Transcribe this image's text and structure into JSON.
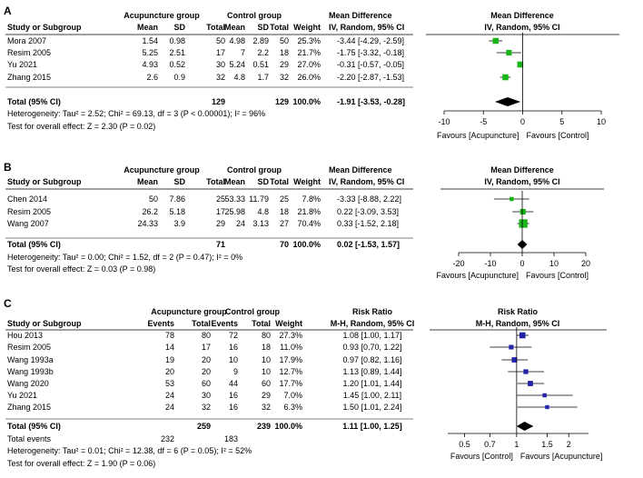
{
  "chart_data": [
    {
      "panel": "A",
      "type": "forest",
      "group1_header": "Acupuncture group",
      "group2_header": "Control group",
      "effect_header": "Mean Difference",
      "effect_sub": "IV, Random, 95% CI",
      "plot_header": "Mean Difference",
      "plot_sub": "IV, Random, 95% CI",
      "columns": [
        "Study or Subgroup",
        "Mean",
        "SD",
        "Total",
        "Mean",
        "SD",
        "Total",
        "Weight"
      ],
      "color": "#18b418",
      "studies": [
        {
          "name": "Mora 2007",
          "mean1": "1.54",
          "sd1": "0.98",
          "n1": "50",
          "mean2": "4.98",
          "sd2": "2.89",
          "n2": "50",
          "weight": "25.3%",
          "ci_text": "-3.44 [-4.29, -2.59]",
          "est": -3.44,
          "lo": -4.29,
          "hi": -2.59,
          "w": 25.3
        },
        {
          "name": "Resim 2005",
          "mean1": "5.25",
          "sd1": "2.51",
          "n1": "17",
          "mean2": "7",
          "sd2": "2.2",
          "n2": "18",
          "weight": "21.7%",
          "ci_text": "-1.75 [-3.32, -0.18]",
          "est": -1.75,
          "lo": -3.32,
          "hi": -0.18,
          "w": 21.7
        },
        {
          "name": "Yu 2021",
          "mean1": "4.93",
          "sd1": "0.52",
          "n1": "30",
          "mean2": "5.24",
          "sd2": "0.51",
          "n2": "29",
          "weight": "27.0%",
          "ci_text": "-0.31 [-0.57, -0.05]",
          "est": -0.31,
          "lo": -0.57,
          "hi": -0.05,
          "w": 27.0
        },
        {
          "name": "Zhang 2015",
          "mean1": "2.6",
          "sd1": "0.9",
          "n1": "32",
          "mean2": "4.8",
          "sd2": "1.7",
          "n2": "32",
          "weight": "26.0%",
          "ci_text": "-2.20 [-2.87, -1.53]",
          "est": -2.2,
          "lo": -2.87,
          "hi": -1.53,
          "w": 26.0
        }
      ],
      "total": {
        "label": "Total (95% CI)",
        "n1": "129",
        "n2": "129",
        "weight": "100.0%",
        "ci_text": "-1.91 [-3.53, -0.28]",
        "est": -1.91,
        "lo": -3.53,
        "hi": -0.28
      },
      "events": null,
      "heterogeneity": "Heterogeneity: Tau² = 2.52; Chi² = 69.13, df = 3 (P < 0.00001); I² = 96%",
      "overall_test": "Test for overall effect: Z = 2.30 (P = 0.02)",
      "axis": {
        "scale": "linear",
        "min": -10,
        "max": 10,
        "ticks": [
          -10,
          -5,
          0,
          5,
          10
        ],
        "tick_labels": [
          "-10",
          "-5",
          "0",
          "5",
          "10"
        ],
        "ref": 0
      },
      "favours_left": "Favours [Acupuncture]",
      "favours_right": "Favours [Control]"
    },
    {
      "panel": "B",
      "type": "forest",
      "group1_header": "Acupuncture group",
      "group2_header": "Control group",
      "effect_header": "Mean Difference",
      "effect_sub": "IV, Random, 95% CI",
      "plot_header": "Mean Difference",
      "plot_sub": "IV, Random, 95% CI",
      "columns": [
        "Study or Subgroup",
        "Mean",
        "SD",
        "Total",
        "Mean",
        "SD",
        "Total",
        "Weight"
      ],
      "color": "#18b418",
      "studies": [
        {
          "name": "Chen 2014",
          "mean1": "50",
          "sd1": "7.86",
          "n1": "25",
          "mean2": "53.33",
          "sd2": "11.79",
          "n2": "25",
          "weight": "7.8%",
          "ci_text": "-3.33 [-8.88, 2.22]",
          "est": -3.33,
          "lo": -8.88,
          "hi": 2.22,
          "w": 7.8
        },
        {
          "name": "Resim 2005",
          "mean1": "26.2",
          "sd1": "5.18",
          "n1": "17",
          "mean2": "25.98",
          "sd2": "4.8",
          "n2": "18",
          "weight": "21.8%",
          "ci_text": "0.22 [-3.09, 3.53]",
          "est": 0.22,
          "lo": -3.09,
          "hi": 3.53,
          "w": 21.8
        },
        {
          "name": "Wang 2007",
          "mean1": "24.33",
          "sd1": "3.9",
          "n1": "29",
          "mean2": "24",
          "sd2": "3.13",
          "n2": "27",
          "weight": "70.4%",
          "ci_text": "0.33 [-1.52, 2.18]",
          "est": 0.33,
          "lo": -1.52,
          "hi": 2.18,
          "w": 70.4
        }
      ],
      "total": {
        "label": "Total (95% CI)",
        "n1": "71",
        "n2": "70",
        "weight": "100.0%",
        "ci_text": "0.02 [-1.53, 1.57]",
        "est": 0.02,
        "lo": -1.53,
        "hi": 1.57
      },
      "events": null,
      "heterogeneity": "Heterogeneity: Tau² = 0.00; Chi² = 1.52, df = 2 (P = 0.47); I² = 0%",
      "overall_test": "Test for overall effect: Z = 0.03 (P = 0.98)",
      "axis": {
        "scale": "linear",
        "min": -20,
        "max": 20,
        "ticks": [
          -20,
          -10,
          0,
          10,
          20
        ],
        "tick_labels": [
          "-20",
          "-10",
          "0",
          "10",
          "20"
        ],
        "ref": 0
      },
      "favours_left": "Favours [Acupuncture]",
      "favours_right": "Favours [Control]"
    },
    {
      "panel": "C",
      "type": "forest",
      "group1_header": "Acupuncture group",
      "group2_header": "Control group",
      "effect_header": "Risk Ratio",
      "effect_sub": "M-H, Random, 95% CI",
      "plot_header": "Risk Ratio",
      "plot_sub": "M-H, Random, 95% CI",
      "columns": [
        "Study or Subgroup",
        "Events",
        "Total",
        "Events",
        "Total",
        "Weight"
      ],
      "color": "#2222aa",
      "studies": [
        {
          "name": "Hou 2013",
          "e1": "78",
          "n1": "80",
          "e2": "72",
          "n2": "80",
          "weight": "27.3%",
          "ci_text": "1.08 [1.00, 1.17]",
          "est": 1.08,
          "lo": 1.0,
          "hi": 1.17,
          "w": 27.3
        },
        {
          "name": "Resim 2005",
          "e1": "14",
          "n1": "17",
          "e2": "16",
          "n2": "18",
          "weight": "11.0%",
          "ci_text": "0.93 [0.70, 1.22]",
          "est": 0.93,
          "lo": 0.7,
          "hi": 1.22,
          "w": 11.0
        },
        {
          "name": "Wang 1993a",
          "e1": "19",
          "n1": "20",
          "e2": "10",
          "n2": "10",
          "weight": "17.9%",
          "ci_text": "0.97 [0.82, 1.16]",
          "est": 0.97,
          "lo": 0.82,
          "hi": 1.16,
          "w": 17.9
        },
        {
          "name": "Wang 1993b",
          "e1": "20",
          "n1": "20",
          "e2": "9",
          "n2": "10",
          "weight": "12.7%",
          "ci_text": "1.13 [0.89, 1.44]",
          "est": 1.13,
          "lo": 0.89,
          "hi": 1.44,
          "w": 12.7
        },
        {
          "name": "Wang 2020",
          "e1": "53",
          "n1": "60",
          "e2": "44",
          "n2": "60",
          "weight": "17.7%",
          "ci_text": "1.20 [1.01, 1.44]",
          "est": 1.2,
          "lo": 1.01,
          "hi": 1.44,
          "w": 17.7
        },
        {
          "name": "Yu 2021",
          "e1": "24",
          "n1": "30",
          "e2": "16",
          "n2": "29",
          "weight": "7.0%",
          "ci_text": "1.45 [1.00, 2.11]",
          "est": 1.45,
          "lo": 1.0,
          "hi": 2.11,
          "w": 7.0
        },
        {
          "name": "Zhang 2015",
          "e1": "24",
          "n1": "32",
          "e2": "16",
          "n2": "32",
          "weight": "6.3%",
          "ci_text": "1.50 [1.01, 2.24]",
          "est": 1.5,
          "lo": 1.01,
          "hi": 2.24,
          "w": 6.3
        }
      ],
      "total": {
        "label": "Total (95% CI)",
        "n1": "259",
        "n2": "239",
        "weight": "100.0%",
        "ci_text": "1.11 [1.00, 1.25]",
        "est": 1.11,
        "lo": 1.0,
        "hi": 1.25
      },
      "events": {
        "label": "Total events",
        "e1": "232",
        "e2": "183"
      },
      "heterogeneity": "Heterogeneity: Tau² = 0.01; Chi² = 12.38, df = 6 (P = 0.05); I² = 52%",
      "overall_test": "Test for overall effect: Z = 1.90 (P = 0.06)",
      "axis": {
        "scale": "log",
        "min": 0.4,
        "max": 2.6,
        "ticks": [
          0.5,
          0.7,
          1,
          1.5,
          2
        ],
        "tick_labels": [
          "0.5",
          "0.7",
          "1",
          "1.5",
          "2"
        ],
        "ref": 1
      },
      "favours_left": "Favours [Control]",
      "favours_right": "Favours [Acupuncture]"
    }
  ]
}
